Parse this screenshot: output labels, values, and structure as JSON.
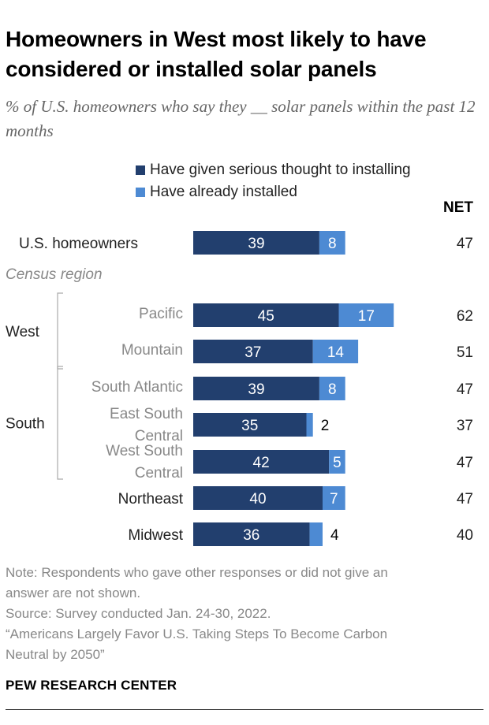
{
  "title": "Homeowners in West most likely to have considered or installed solar panels",
  "subtitle": "% of U.S. homeowners who say they __ solar panels within the past 12 months",
  "colors": {
    "thought": "#223f6e",
    "installed": "#4d8ad3",
    "label_muted": "#888888",
    "label_dark": "#222222"
  },
  "chart_data": {
    "type": "bar",
    "orientation": "horizontal",
    "stacked": true,
    "series": [
      {
        "name": "Have given serious thought to installing",
        "color": "#223f6e"
      },
      {
        "name": "Have already installed",
        "color": "#4d8ad3"
      }
    ],
    "net_header": "NET",
    "section_label": "Census region",
    "rows": [
      {
        "label": "U.S. homeowners",
        "thought": 39,
        "installed": 8,
        "net": 47
      },
      {
        "label": "Pacific",
        "group": "West",
        "thought": 45,
        "installed": 17,
        "net": 62
      },
      {
        "label": "Mountain",
        "group": "West",
        "thought": 37,
        "installed": 14,
        "net": 51
      },
      {
        "label": "South Atlantic",
        "group": "South",
        "thought": 39,
        "installed": 8,
        "net": 47
      },
      {
        "label": "East South Central",
        "group": "South",
        "thought": 35,
        "installed": 2,
        "net": 37
      },
      {
        "label": "West South Central",
        "group": "South",
        "thought": 42,
        "installed": 5,
        "net": 47
      },
      {
        "label": "Northeast",
        "thought": 40,
        "installed": 7,
        "net": 47
      },
      {
        "label": "Midwest",
        "thought": 36,
        "installed": 4,
        "net": 40
      }
    ],
    "groups": [
      "West",
      "South"
    ]
  },
  "note_lines": [
    "Note: Respondents who gave other responses or did not give an",
    "answer are not shown.",
    "Source: Survey conducted Jan. 24-30, 2022.",
    "“Americans Largely Favor U.S. Taking Steps To Become Carbon",
    "Neutral by 2050”"
  ],
  "brand": "PEW RESEARCH CENTER"
}
